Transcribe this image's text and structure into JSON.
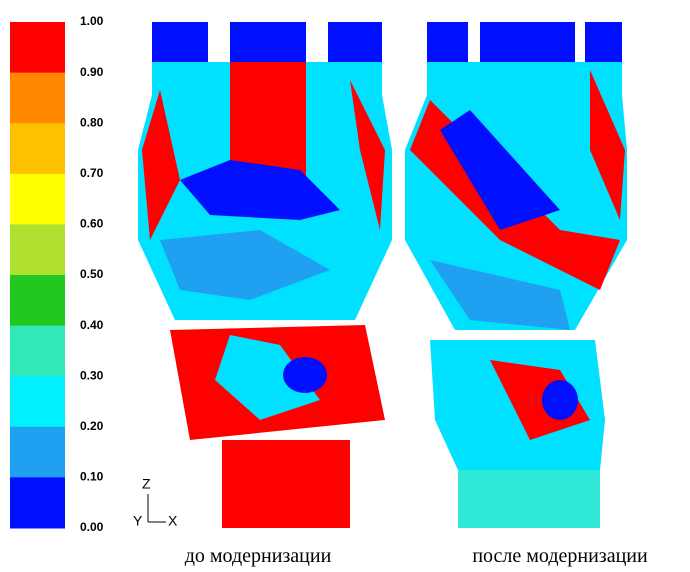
{
  "colorbar": {
    "tick_labels": [
      "1.00",
      "0.90",
      "0.80",
      "0.70",
      "0.60",
      "0.50",
      "0.40",
      "0.30",
      "0.20",
      "0.10",
      "0.00"
    ],
    "colors": [
      "#ff0000",
      "#ff8800",
      "#ffc000",
      "#ffff00",
      "#b0e030",
      "#20c820",
      "#30e8b8",
      "#00f0ff",
      "#20a0f0",
      "#0010ff"
    ]
  },
  "axes": {
    "z": "Z",
    "y": "Y",
    "x": "X"
  },
  "captions": [
    "до модернизации",
    "после модернизации"
  ]
}
